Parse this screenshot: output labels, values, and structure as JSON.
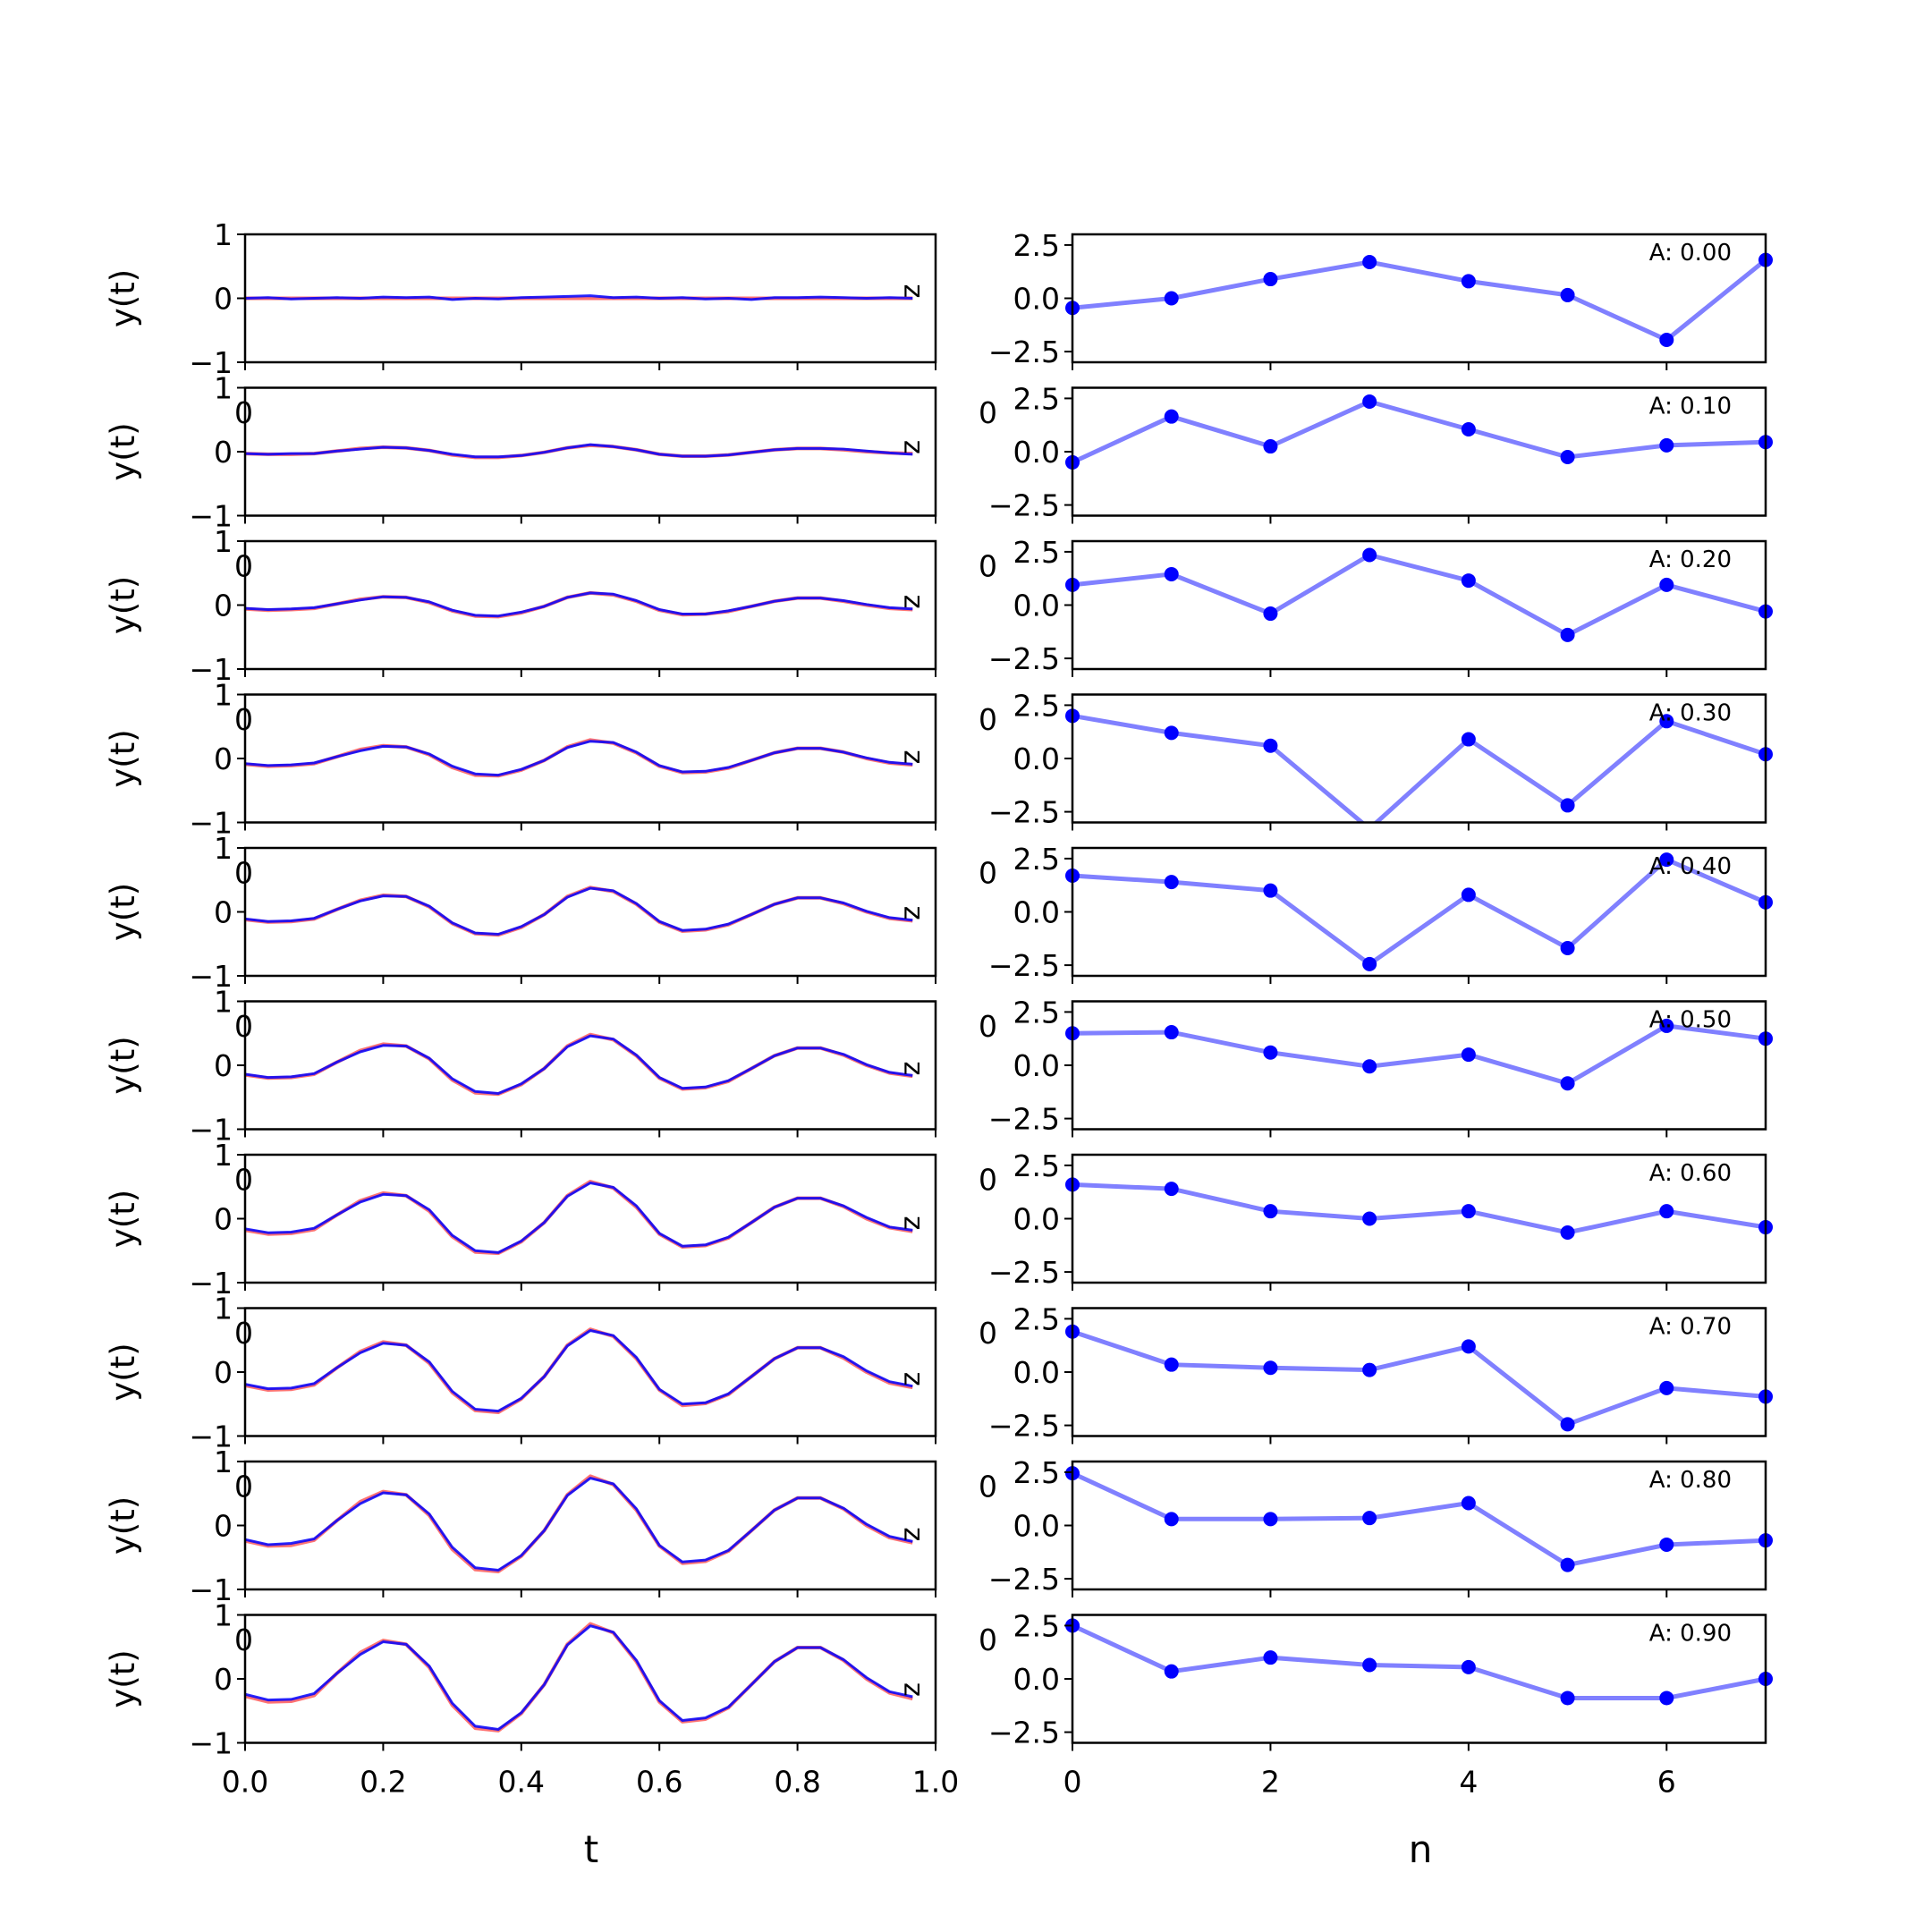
{
  "chart_data": [
    {
      "type": "line",
      "panel": "left",
      "xlabel": "t",
      "ylabel": "y(t)",
      "xlim": [
        0,
        1
      ],
      "ylim": [
        -1,
        1
      ],
      "yticks": [
        -1,
        0,
        1
      ],
      "ytick_labels": [
        "−1",
        "0",
        "1"
      ],
      "xticks": [
        0,
        0.2,
        0.4,
        0.6,
        0.8,
        1.0
      ],
      "xtick_labels": [
        "0.0",
        "0.2",
        "0.4",
        "0.6",
        "0.8",
        "1.0"
      ],
      "clipped_overlap_label": "0",
      "edge_marker": "z",
      "t": [
        0,
        0.0333,
        0.0667,
        0.1,
        0.1333,
        0.1667,
        0.2,
        0.2333,
        0.2667,
        0.3,
        0.3333,
        0.3667,
        0.4,
        0.4333,
        0.4667,
        0.5,
        0.5333,
        0.5667,
        0.6,
        0.6333,
        0.6667,
        0.7,
        0.7333,
        0.7667,
        0.8,
        0.8333,
        0.8667,
        0.9,
        0.9333,
        0.9667
      ],
      "series_colors": {
        "true": "#ff0000",
        "pred": "#0000ff"
      },
      "rows": [
        {
          "A": 0.0,
          "true": [
            0,
            0,
            0,
            0,
            0,
            0,
            0,
            0,
            0,
            0,
            0,
            0,
            0,
            0,
            0,
            0,
            0,
            0,
            0,
            0,
            0,
            0,
            0,
            0,
            0,
            0,
            0,
            0,
            0,
            0
          ],
          "pred": [
            0.0,
            0.01,
            -0.01,
            0.0,
            0.01,
            0.0,
            0.02,
            0.01,
            0.02,
            -0.02,
            0.0,
            -0.01,
            0.01,
            0.02,
            0.03,
            0.04,
            0.01,
            0.02,
            0.0,
            0.01,
            -0.01,
            0.0,
            -0.02,
            0.01,
            0.01,
            0.02,
            0.01,
            0.0,
            0.01,
            0.0
          ]
        },
        {
          "A": 0.1,
          "true": [
            -0.03,
            -0.04,
            -0.04,
            -0.03,
            0.01,
            0.05,
            0.07,
            0.06,
            0.02,
            -0.05,
            -0.09,
            -0.09,
            -0.06,
            -0.01,
            0.06,
            0.1,
            0.08,
            0.03,
            -0.04,
            -0.07,
            -0.07,
            -0.05,
            -0.01,
            0.03,
            0.05,
            0.05,
            0.03,
            0.0,
            -0.02,
            -0.03
          ],
          "pred": [
            -0.03,
            -0.04,
            -0.03,
            -0.03,
            0.01,
            0.04,
            0.07,
            0.06,
            0.02,
            -0.04,
            -0.08,
            -0.08,
            -0.06,
            -0.01,
            0.06,
            0.11,
            0.08,
            0.03,
            -0.04,
            -0.07,
            -0.07,
            -0.05,
            -0.01,
            0.03,
            0.05,
            0.05,
            0.04,
            0.01,
            -0.02,
            -0.04
          ]
        },
        {
          "A": 0.2,
          "true": [
            -0.06,
            -0.08,
            -0.07,
            -0.05,
            0.02,
            0.09,
            0.13,
            0.12,
            0.04,
            -0.09,
            -0.17,
            -0.18,
            -0.12,
            -0.02,
            0.12,
            0.19,
            0.16,
            0.06,
            -0.08,
            -0.15,
            -0.14,
            -0.1,
            -0.02,
            0.06,
            0.11,
            0.11,
            0.06,
            0.0,
            -0.05,
            -0.07
          ],
          "pred": [
            -0.05,
            -0.07,
            -0.06,
            -0.04,
            0.02,
            0.08,
            0.13,
            0.12,
            0.05,
            -0.08,
            -0.16,
            -0.17,
            -0.11,
            -0.02,
            0.12,
            0.19,
            0.17,
            0.07,
            -0.07,
            -0.14,
            -0.14,
            -0.09,
            -0.02,
            0.06,
            0.11,
            0.11,
            0.07,
            0.01,
            -0.04,
            -0.06
          ]
        },
        {
          "A": 0.3,
          "true": [
            -0.09,
            -0.12,
            -0.11,
            -0.08,
            0.03,
            0.14,
            0.2,
            0.18,
            0.06,
            -0.14,
            -0.26,
            -0.27,
            -0.18,
            -0.03,
            0.18,
            0.29,
            0.24,
            0.09,
            -0.12,
            -0.22,
            -0.21,
            -0.15,
            -0.03,
            0.09,
            0.16,
            0.16,
            0.1,
            0.0,
            -0.07,
            -0.1
          ],
          "pred": [
            -0.08,
            -0.11,
            -0.1,
            -0.07,
            0.03,
            0.12,
            0.19,
            0.18,
            0.07,
            -0.12,
            -0.24,
            -0.26,
            -0.17,
            -0.03,
            0.17,
            0.27,
            0.25,
            0.1,
            -0.11,
            -0.21,
            -0.2,
            -0.14,
            -0.03,
            0.09,
            0.16,
            0.16,
            0.1,
            0.01,
            -0.06,
            -0.09
          ]
        },
        {
          "A": 0.4,
          "true": [
            -0.12,
            -0.16,
            -0.15,
            -0.11,
            0.04,
            0.18,
            0.26,
            0.24,
            0.08,
            -0.18,
            -0.34,
            -0.36,
            -0.24,
            -0.04,
            0.24,
            0.38,
            0.32,
            0.12,
            -0.16,
            -0.3,
            -0.28,
            -0.2,
            -0.04,
            0.12,
            0.22,
            0.22,
            0.13,
            0.0,
            -0.1,
            -0.14
          ],
          "pred": [
            -0.11,
            -0.15,
            -0.14,
            -0.1,
            0.04,
            0.17,
            0.25,
            0.24,
            0.09,
            -0.17,
            -0.33,
            -0.35,
            -0.23,
            -0.04,
            0.23,
            0.37,
            0.33,
            0.13,
            -0.15,
            -0.29,
            -0.27,
            -0.19,
            -0.04,
            0.12,
            0.22,
            0.22,
            0.14,
            0.01,
            -0.09,
            -0.13
          ]
        },
        {
          "A": 0.5,
          "true": [
            -0.15,
            -0.2,
            -0.19,
            -0.14,
            0.05,
            0.23,
            0.33,
            0.3,
            0.1,
            -0.23,
            -0.43,
            -0.45,
            -0.3,
            -0.05,
            0.3,
            0.48,
            0.4,
            0.15,
            -0.2,
            -0.37,
            -0.35,
            -0.25,
            -0.05,
            0.15,
            0.27,
            0.27,
            0.16,
            0.0,
            -0.12,
            -0.17
          ],
          "pred": [
            -0.14,
            -0.19,
            -0.18,
            -0.13,
            0.05,
            0.21,
            0.31,
            0.3,
            0.11,
            -0.21,
            -0.41,
            -0.44,
            -0.29,
            -0.05,
            0.29,
            0.46,
            0.41,
            0.16,
            -0.19,
            -0.36,
            -0.34,
            -0.24,
            -0.05,
            0.15,
            0.27,
            0.27,
            0.17,
            0.01,
            -0.11,
            -0.16
          ]
        },
        {
          "A": 0.6,
          "true": [
            -0.18,
            -0.24,
            -0.23,
            -0.17,
            0.06,
            0.28,
            0.4,
            0.36,
            0.12,
            -0.28,
            -0.52,
            -0.54,
            -0.36,
            -0.06,
            0.36,
            0.58,
            0.48,
            0.18,
            -0.24,
            -0.44,
            -0.42,
            -0.3,
            -0.06,
            0.18,
            0.32,
            0.32,
            0.19,
            0.0,
            -0.14,
            -0.2
          ],
          "pred": [
            -0.16,
            -0.22,
            -0.21,
            -0.15,
            0.06,
            0.26,
            0.38,
            0.36,
            0.14,
            -0.26,
            -0.5,
            -0.53,
            -0.35,
            -0.06,
            0.35,
            0.56,
            0.49,
            0.2,
            -0.23,
            -0.43,
            -0.41,
            -0.29,
            -0.06,
            0.18,
            0.32,
            0.32,
            0.2,
            0.02,
            -0.13,
            -0.18
          ]
        },
        {
          "A": 0.7,
          "true": [
            -0.21,
            -0.28,
            -0.27,
            -0.2,
            0.07,
            0.32,
            0.47,
            0.42,
            0.14,
            -0.32,
            -0.6,
            -0.63,
            -0.42,
            -0.07,
            0.42,
            0.67,
            0.56,
            0.21,
            -0.28,
            -0.52,
            -0.49,
            -0.35,
            -0.07,
            0.21,
            0.38,
            0.38,
            0.22,
            0.0,
            -0.17,
            -0.24
          ],
          "pred": [
            -0.19,
            -0.26,
            -0.25,
            -0.18,
            0.07,
            0.3,
            0.45,
            0.42,
            0.16,
            -0.3,
            -0.58,
            -0.61,
            -0.41,
            -0.07,
            0.41,
            0.65,
            0.57,
            0.23,
            -0.27,
            -0.5,
            -0.48,
            -0.34,
            -0.07,
            0.21,
            0.38,
            0.38,
            0.24,
            0.02,
            -0.15,
            -0.22
          ]
        },
        {
          "A": 0.8,
          "true": [
            -0.24,
            -0.32,
            -0.31,
            -0.23,
            0.08,
            0.37,
            0.53,
            0.48,
            0.16,
            -0.37,
            -0.69,
            -0.72,
            -0.48,
            -0.08,
            0.48,
            0.77,
            0.64,
            0.24,
            -0.32,
            -0.59,
            -0.56,
            -0.4,
            -0.08,
            0.24,
            0.43,
            0.43,
            0.26,
            0.0,
            -0.19,
            -0.27
          ],
          "pred": [
            -0.22,
            -0.3,
            -0.28,
            -0.21,
            0.08,
            0.34,
            0.51,
            0.48,
            0.18,
            -0.34,
            -0.66,
            -0.7,
            -0.47,
            -0.08,
            0.47,
            0.74,
            0.65,
            0.26,
            -0.31,
            -0.57,
            -0.54,
            -0.39,
            -0.08,
            0.24,
            0.43,
            0.43,
            0.27,
            0.02,
            -0.17,
            -0.25
          ]
        },
        {
          "A": 0.9,
          "true": [
            -0.27,
            -0.36,
            -0.35,
            -0.26,
            0.09,
            0.41,
            0.6,
            0.54,
            0.18,
            -0.41,
            -0.77,
            -0.81,
            -0.54,
            -0.09,
            0.54,
            0.86,
            0.72,
            0.27,
            -0.36,
            -0.67,
            -0.63,
            -0.45,
            -0.09,
            0.27,
            0.49,
            0.49,
            0.29,
            0.0,
            -0.22,
            -0.31
          ],
          "pred": [
            -0.24,
            -0.33,
            -0.32,
            -0.23,
            0.09,
            0.38,
            0.58,
            0.54,
            0.2,
            -0.38,
            -0.74,
            -0.79,
            -0.53,
            -0.09,
            0.53,
            0.83,
            0.73,
            0.29,
            -0.34,
            -0.65,
            -0.61,
            -0.44,
            -0.09,
            0.27,
            0.49,
            0.49,
            0.3,
            0.02,
            -0.2,
            -0.28
          ]
        }
      ]
    },
    {
      "type": "line",
      "panel": "right",
      "xlabel": "n",
      "xlim": [
        0,
        7
      ],
      "ylim": [
        -3,
        3
      ],
      "yticks": [
        -2.5,
        0,
        2.5
      ],
      "ytick_labels": [
        "−2.5",
        "0.0",
        "2.5"
      ],
      "xticks": [
        0,
        2,
        4,
        6
      ],
      "xtick_labels": [
        "0",
        "2",
        "4",
        "6"
      ],
      "clipped_overlap_label": "0",
      "line_color": "#8080ff",
      "marker_color": "#0000ff",
      "n": [
        0,
        1,
        2,
        3,
        4,
        5,
        6,
        7
      ],
      "rows": [
        {
          "label": "A: 0.00",
          "values": [
            -0.45,
            0.0,
            0.9,
            1.7,
            0.8,
            0.15,
            -1.95,
            1.8
          ]
        },
        {
          "label": "A: 0.10",
          "values": [
            -0.5,
            1.65,
            0.25,
            2.35,
            1.05,
            -0.25,
            0.3,
            0.45
          ]
        },
        {
          "label": "A: 0.20",
          "values": [
            0.95,
            1.45,
            -0.4,
            2.35,
            1.15,
            -1.4,
            0.95,
            -0.3
          ]
        },
        {
          "label": "A: 0.30",
          "values": [
            2.0,
            1.2,
            0.6,
            -3.3,
            0.9,
            -2.2,
            1.75,
            0.2
          ]
        },
        {
          "label": "A: 0.40",
          "values": [
            1.7,
            1.4,
            1.0,
            -2.45,
            0.8,
            -1.7,
            2.45,
            0.45
          ]
        },
        {
          "label": "A: 0.50",
          "values": [
            1.5,
            1.55,
            0.6,
            -0.05,
            0.5,
            -0.85,
            1.85,
            1.25
          ]
        },
        {
          "label": "A: 0.60",
          "values": [
            1.6,
            1.4,
            0.35,
            0.0,
            0.35,
            -0.65,
            0.35,
            -0.4
          ]
        },
        {
          "label": "A: 0.70",
          "values": [
            1.9,
            0.35,
            0.2,
            0.1,
            1.2,
            -2.45,
            -0.75,
            -1.15
          ]
        },
        {
          "label": "A: 0.80",
          "values": [
            2.45,
            0.3,
            0.3,
            0.35,
            1.05,
            -1.85,
            -0.9,
            -0.7
          ]
        },
        {
          "label": "A: 0.90",
          "values": [
            2.5,
            0.35,
            1.0,
            0.65,
            0.55,
            -0.9,
            -0.9,
            0.0
          ]
        }
      ]
    }
  ]
}
